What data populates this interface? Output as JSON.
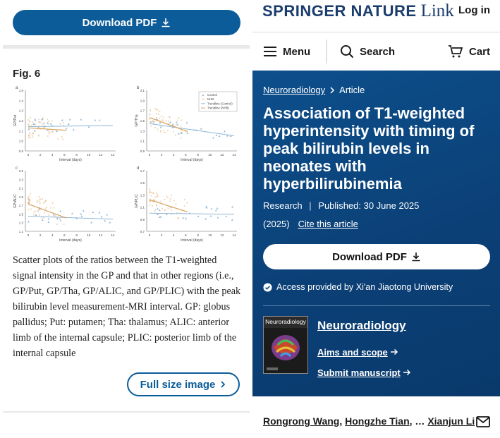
{
  "left": {
    "download_top": "Download PDF",
    "figure_label": "Fig. 6",
    "panels": [
      {
        "letter": "a",
        "ylabel": "GP/Put",
        "yticks": [
          "1.5",
          "1.4",
          "1.3",
          "1.2",
          "1.1",
          "1.0",
          "0.9"
        ]
      },
      {
        "letter": "b",
        "ylabel": "GP/Tha",
        "yticks": [
          "2.1",
          "1.9",
          "1.7",
          "1.5",
          "1.3",
          "1.1",
          "0.9"
        ]
      },
      {
        "letter": "c",
        "ylabel": "GP/ALIC",
        "yticks": [
          "2.5",
          "2.3",
          "2.1",
          "1.9",
          "1.7",
          "1.5",
          "1.3",
          "1.1"
        ]
      },
      {
        "letter": "d",
        "ylabel": "GP/PLIC",
        "yticks": [
          "1.7",
          "1.5",
          "1.3",
          "1.1",
          "0.9",
          "0.7"
        ]
      }
    ],
    "xticks": [
      "0",
      "2",
      "4",
      "6",
      "8",
      "10",
      "12",
      "14"
    ],
    "xlabel": "Interval (days)",
    "legend": [
      "Control",
      "NHB",
      "Trendline (Control)",
      "Trendline (NHB)"
    ],
    "caption": "Scatter plots of the ratios between the T1-weighted signal intensity in the GP and that in other regions (i.e., GP/Put, GP/Tha, GP/ALIC, and GP/PLIC) with the peak bilirubin level measurement-MRI interval. GP: globus pallidus; Put: putamen; Tha: thalamus; ALIC: anterior limb of the internal capsule; PLIC: posterior limb of the internal capsule",
    "full_size": "Full size image",
    "colors": {
      "control": "#8db8d8",
      "nhb": "#d9a15c",
      "accent": "#0b5c99"
    }
  },
  "right": {
    "brand_main": "SPRINGER NATURE",
    "brand_link": "Link",
    "login": "Log in",
    "nav": {
      "menu": "Menu",
      "search": "Search",
      "cart": "Cart"
    },
    "breadcrumb": {
      "journal": "Neuroradiology",
      "type": "Article"
    },
    "title": "Association of T1-weighted hyperintensity with timing of peak bilirubin levels in neonates with hyperbilirubinemia",
    "meta_type": "Research",
    "meta_published": "Published: 30 June 2025",
    "year": "(2025)",
    "cite": "Cite this article",
    "download": "Download PDF",
    "access": "Access provided by Xi'an Jiaotong University",
    "journal": {
      "name": "Neuroradiology",
      "cover_title": "Neuroradiology",
      "aims": "Aims and scope",
      "submit": "Submit manuscript"
    },
    "authors": [
      "Rongrong Wang",
      "Hongzhe Tian",
      "Xianjun Li"
    ],
    "authors_sep": ", ",
    "authors_ellipsis": ", … ",
    "colors": {
      "hero": "#0b4a85",
      "brand": "#1a3d6d"
    }
  }
}
